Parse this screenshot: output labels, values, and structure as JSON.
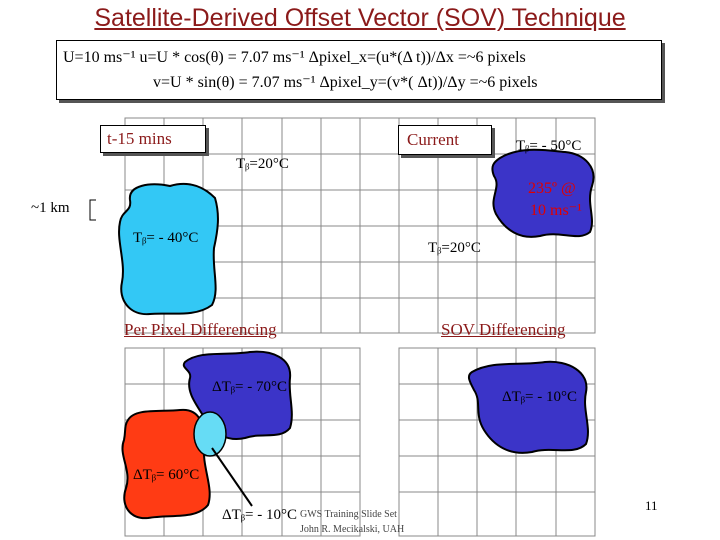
{
  "title": "Satellite-Derived Offset Vector (SOV) Technique",
  "equations": {
    "line1": "U=10 ms⁻¹ u=U * cos(θ) = 7.07 ms⁻¹  Δpixel_x=(u*(Δ t))/Δx  =~6 pixels",
    "line2": "v=U * sin(θ) = 7.07 ms⁻¹  Δpixel_y=(v*( Δt))/Δy  =~6 pixels"
  },
  "top": {
    "past_label": "t-15 mins",
    "current_label": "Current",
    "tb_mid": "Tᵦ=20°C",
    "tb_cold_current": "Tᵦ= - 50°C",
    "tb_past": "Tᵦ= - 40°C",
    "tb_right": "Tᵦ=20°C",
    "scale": "~1 km",
    "motion_line1": "235º @",
    "motion_line2": "10 ms⁻¹"
  },
  "bottom": {
    "ppd_title": "Per Pixel Differencing",
    "sov_title": "SOV Differencing",
    "delta_minus70": "ΔTᵦ= - 70°C",
    "delta_60": "ΔTᵦ= 60°C",
    "delta_minus10_left": "ΔTᵦ= - 10°C",
    "delta_minus10_right": "ΔTᵦ= - 10°C"
  },
  "footer": {
    "page": "11",
    "line1": "GWS Training Slide Set",
    "line2": "John R. Mecikalski, UAH"
  },
  "colors": {
    "title": "#8b1a1a",
    "cold_blob": "#3b34c8",
    "light_blob": "#33c8f5",
    "warm_blob": "#ff3b14",
    "small_blob": "#66dcf5",
    "grid": "#888888"
  }
}
